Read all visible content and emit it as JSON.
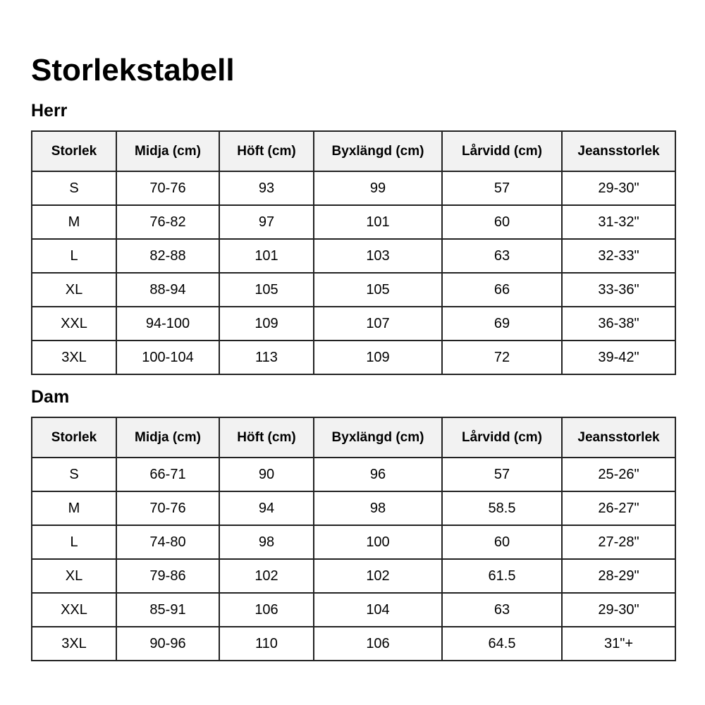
{
  "title": "Storlekstabell",
  "columns": [
    "Storlek",
    "Midja (cm)",
    "Höft (cm)",
    "Byxlängd (cm)",
    "Lårvidd (cm)",
    "Jeansstorlek"
  ],
  "herr": {
    "heading": "Herr",
    "rows": [
      [
        "S",
        "70-76",
        "93",
        "99",
        "57",
        "29-30\""
      ],
      [
        "M",
        "76-82",
        "97",
        "101",
        "60",
        "31-32\""
      ],
      [
        "L",
        "82-88",
        "101",
        "103",
        "63",
        "32-33\""
      ],
      [
        "XL",
        "88-94",
        "105",
        "105",
        "66",
        "33-36\""
      ],
      [
        "XXL",
        "94-100",
        "109",
        "107",
        "69",
        "36-38\""
      ],
      [
        "3XL",
        "100-104",
        "113",
        "109",
        "72",
        "39-42\""
      ]
    ]
  },
  "dam": {
    "heading": "Dam",
    "rows": [
      [
        "S",
        "66-71",
        "90",
        "96",
        "57",
        "25-26\""
      ],
      [
        "M",
        "70-76",
        "94",
        "98",
        "58.5",
        "26-27\""
      ],
      [
        "L",
        "74-80",
        "98",
        "100",
        "60",
        "27-28\""
      ],
      [
        "XL",
        "79-86",
        "102",
        "102",
        "61.5",
        "28-29\""
      ],
      [
        "XXL",
        "85-91",
        "106",
        "104",
        "63",
        "29-30\""
      ],
      [
        "3XL",
        "90-96",
        "110",
        "106",
        "64.5",
        "31\"+"
      ]
    ]
  },
  "colors": {
    "header_bg": "#f2f2f2",
    "border": "#222222"
  }
}
